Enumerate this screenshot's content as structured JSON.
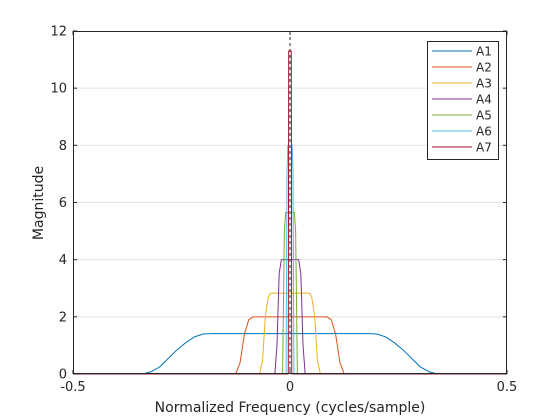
{
  "chart_data": {
    "type": "line",
    "xlabel": "Normalized Frequency (cycles/sample)",
    "ylabel": "Magnitude",
    "xlim": [
      -0.5,
      0.5
    ],
    "ylim": [
      0,
      12
    ],
    "xticks": [
      -0.5,
      0,
      0.5
    ],
    "xtick_labels": [
      "-0.5",
      "0",
      "0.5"
    ],
    "yticks": [
      0,
      2,
      4,
      6,
      8,
      10,
      12
    ],
    "ytick_labels": [
      "0",
      "2",
      "4",
      "6",
      "8",
      "10",
      "12"
    ],
    "grid": "y-major",
    "legend_position": "top-right",
    "reference_line_x": 0,
    "series": [
      {
        "name": "A1",
        "color": "#0072BD",
        "x": [
          -0.5,
          -0.34,
          -0.32,
          -0.3,
          -0.28,
          -0.26,
          -0.24,
          -0.22,
          -0.2,
          -0.18,
          0.18,
          0.2,
          0.22,
          0.24,
          0.26,
          0.28,
          0.3,
          0.32,
          0.34,
          0.5
        ],
        "y": [
          0,
          0,
          0.08,
          0.25,
          0.55,
          0.85,
          1.1,
          1.3,
          1.4,
          1.414,
          1.414,
          1.4,
          1.3,
          1.1,
          0.85,
          0.55,
          0.25,
          0.08,
          0,
          0
        ]
      },
      {
        "name": "A2",
        "color": "#D95319",
        "x": [
          -0.5,
          -0.125,
          -0.115,
          -0.105,
          -0.095,
          -0.085,
          0.085,
          0.095,
          0.105,
          0.115,
          0.125,
          0.5
        ],
        "y": [
          0,
          0,
          0.4,
          1.4,
          1.9,
          2.0,
          2.0,
          1.9,
          1.4,
          0.4,
          0,
          0
        ]
      },
      {
        "name": "A3",
        "color": "#EDB120",
        "x": [
          -0.5,
          -0.07,
          -0.063,
          -0.057,
          -0.05,
          -0.045,
          0.045,
          0.05,
          0.057,
          0.063,
          0.07,
          0.5
        ],
        "y": [
          0,
          0,
          0.5,
          2.0,
          2.7,
          2.83,
          2.83,
          2.7,
          2.0,
          0.5,
          0,
          0
        ]
      },
      {
        "name": "A4",
        "color": "#7E2F8E",
        "x": [
          -0.5,
          -0.035,
          -0.03,
          -0.025,
          -0.02,
          0.02,
          0.025,
          0.03,
          0.035,
          0.5
        ],
        "y": [
          0,
          0,
          1.0,
          3.5,
          4.0,
          4.0,
          3.5,
          1.0,
          0,
          0
        ]
      },
      {
        "name": "A5",
        "color": "#77AC30",
        "x": [
          -0.5,
          -0.017,
          -0.013,
          -0.01,
          0.01,
          0.013,
          0.017,
          0.5
        ],
        "y": [
          0,
          0,
          5.0,
          5.65,
          5.65,
          5.0,
          0,
          0
        ]
      },
      {
        "name": "A6",
        "color": "#4DBEEE",
        "x": [
          -0.5,
          -0.009,
          -0.007,
          -0.005,
          0.005,
          0.007,
          0.009,
          0.5
        ],
        "y": [
          0,
          0,
          7.0,
          8.0,
          8.0,
          7.0,
          0,
          0
        ]
      },
      {
        "name": "A7",
        "color": "#A2142F",
        "x": [
          -0.5,
          -0.004,
          -0.003,
          0.003,
          0.004,
          0.5
        ],
        "y": [
          0,
          0,
          11.3,
          11.3,
          0,
          0
        ]
      }
    ]
  }
}
